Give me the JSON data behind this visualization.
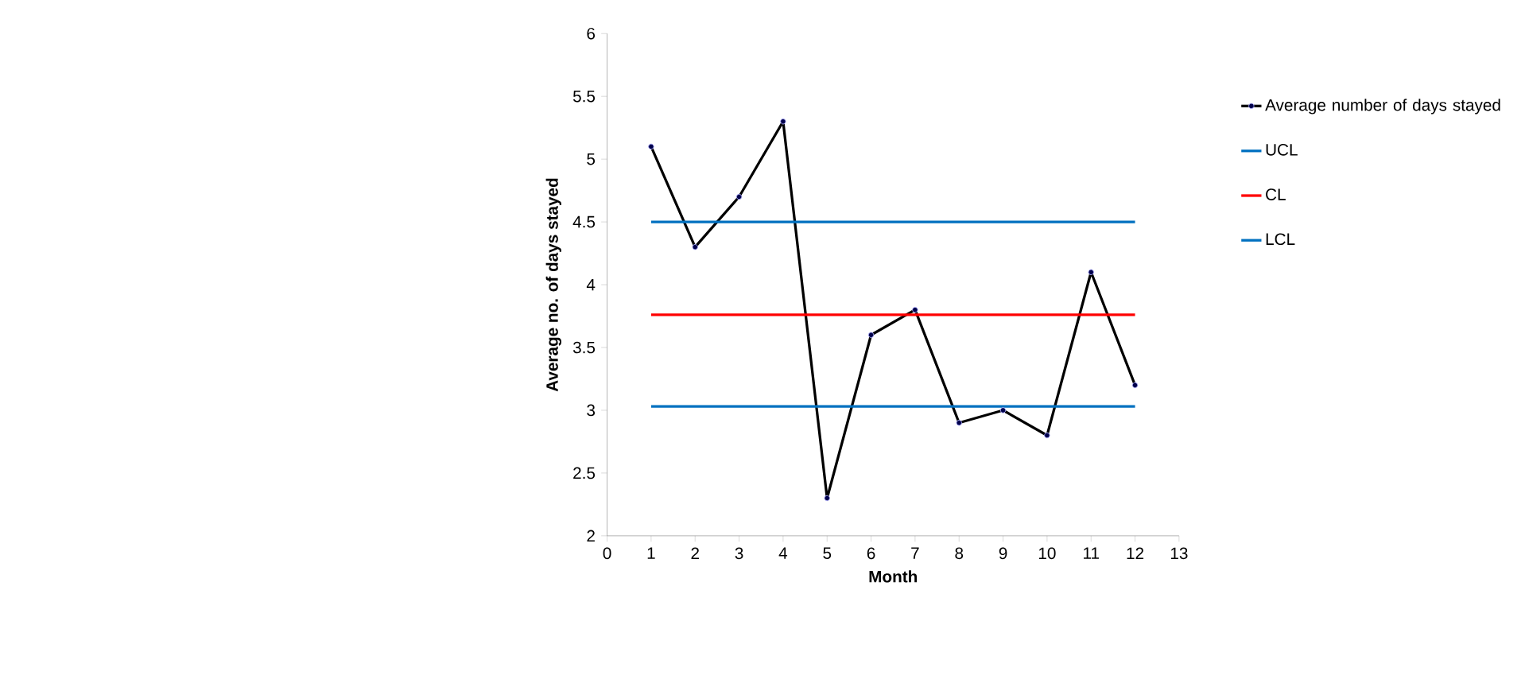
{
  "chart_data": {
    "type": "line",
    "xlabel": "Month",
    "ylabel": "Average no. of days stayed",
    "x": [
      1,
      2,
      3,
      4,
      5,
      6,
      7,
      8,
      9,
      10,
      11,
      12
    ],
    "xlim": [
      0,
      13
    ],
    "xticks": [
      0,
      1,
      2,
      3,
      4,
      5,
      6,
      7,
      8,
      9,
      10,
      11,
      12,
      13
    ],
    "ylim": [
      2,
      6
    ],
    "yticks": [
      2,
      2.5,
      3,
      3.5,
      4,
      4.5,
      5,
      5.5,
      6
    ],
    "grid": false,
    "legend": "right",
    "marker": "circle",
    "series": [
      {
        "name": "Average number of days stayed",
        "color": "#000000",
        "values": [
          5.1,
          4.3,
          4.7,
          5.3,
          2.3,
          3.6,
          3.8,
          2.9,
          3.0,
          2.8,
          4.1,
          3.2
        ]
      },
      {
        "name": "UCL",
        "color": "#0070c0",
        "marker": "none",
        "values": [
          4.5,
          4.5,
          4.5,
          4.5,
          4.5,
          4.5,
          4.5,
          4.5,
          4.5,
          4.5,
          4.5,
          4.5
        ]
      },
      {
        "name": "CL",
        "color": "#ff0000",
        "marker": "none",
        "values": [
          3.76,
          3.76,
          3.76,
          3.76,
          3.76,
          3.76,
          3.76,
          3.76,
          3.76,
          3.76,
          3.76,
          3.76
        ]
      },
      {
        "name": "LCL",
        "color": "#0070c0",
        "marker": "none",
        "values": [
          3.03,
          3.03,
          3.03,
          3.03,
          3.03,
          3.03,
          3.03,
          3.03,
          3.03,
          3.03,
          3.03,
          3.03
        ]
      }
    ]
  }
}
